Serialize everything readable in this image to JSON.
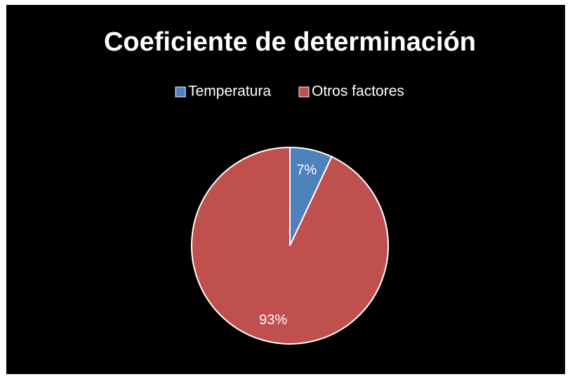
{
  "chart_data": {
    "type": "pie",
    "title": "Coeficiente de determinación",
    "categories": [
      "Temperatura",
      "Otros factores"
    ],
    "values": [
      7,
      93
    ],
    "value_labels": [
      "7%",
      "93%"
    ],
    "colors": [
      "#4f81bd",
      "#c0504d"
    ],
    "legend": "top"
  }
}
